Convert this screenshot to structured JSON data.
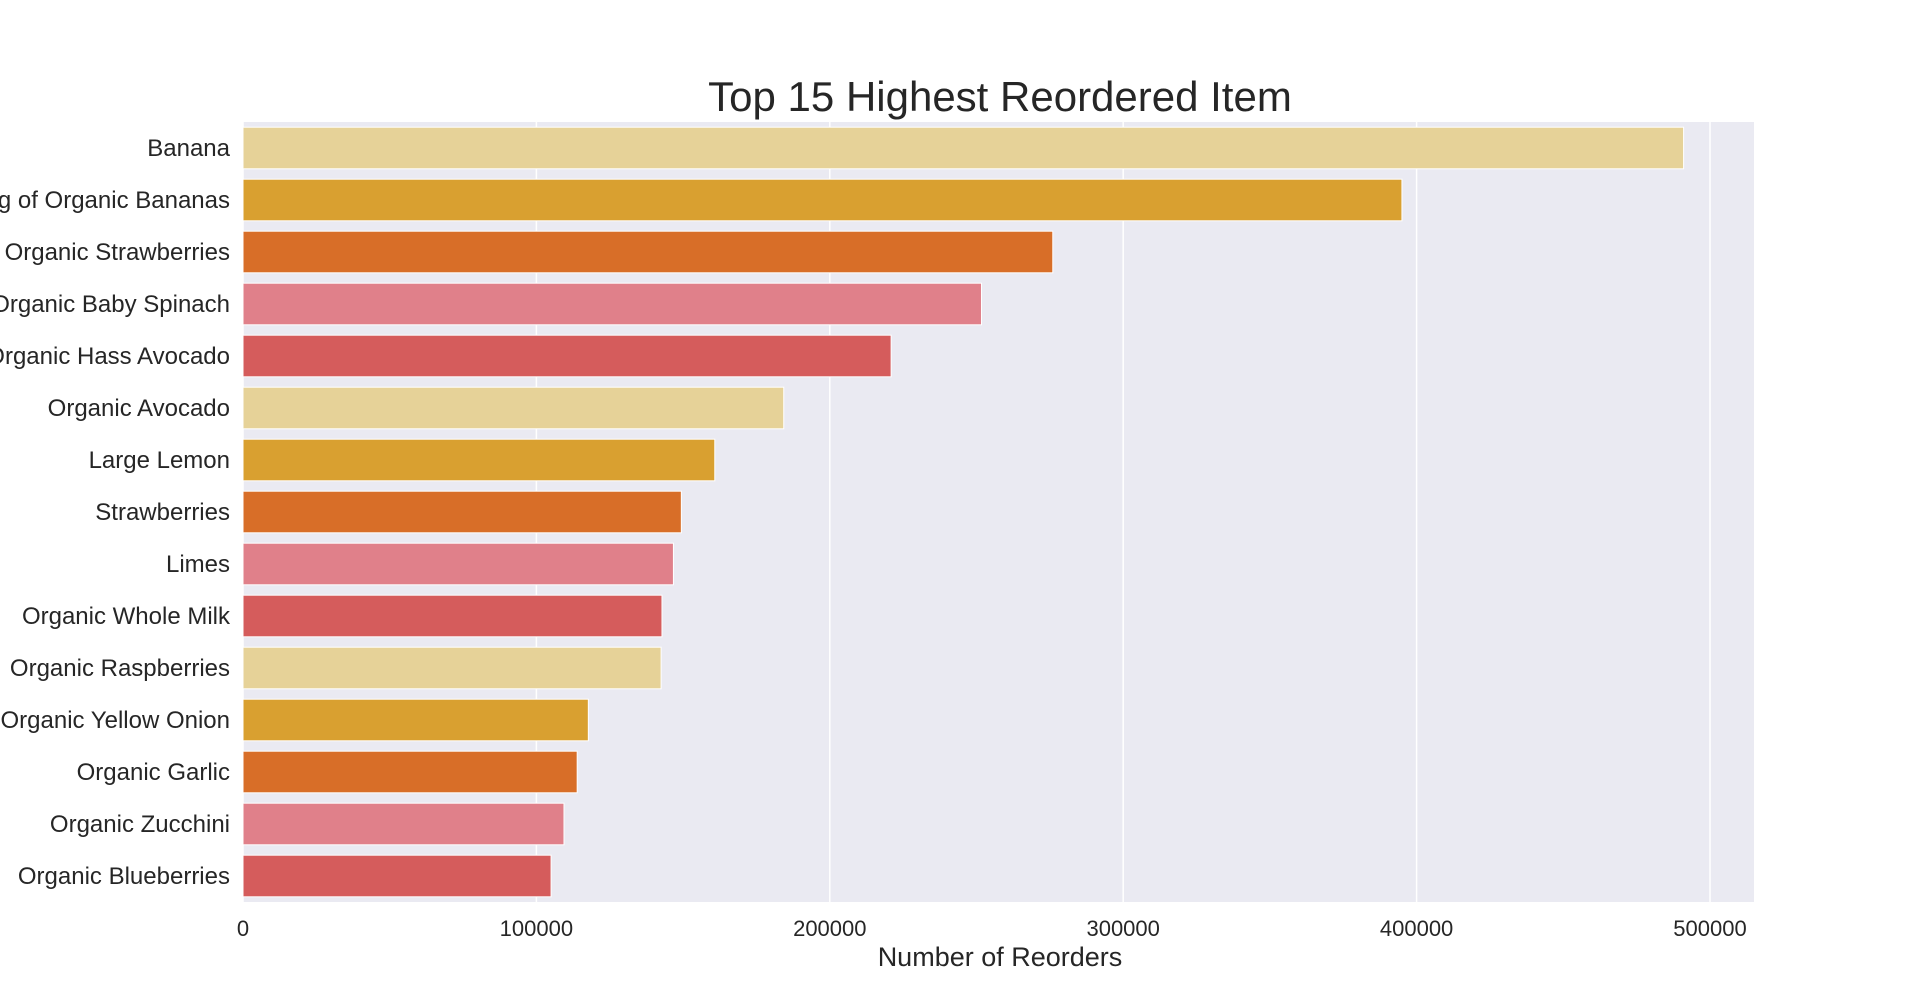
{
  "chart_data": {
    "type": "bar",
    "orientation": "horizontal",
    "title": "Top 15 Highest Reordered Item",
    "xlabel": "Number of Reorders",
    "ylabel": "",
    "categories": [
      "Banana",
      "Bag of Organic Bananas",
      "Organic Strawberries",
      "Organic Baby Spinach",
      "Organic Hass Avocado",
      "Organic Avocado",
      "Large Lemon",
      "Strawberries",
      "Limes",
      "Organic Whole Milk",
      "Organic Raspberries",
      "Organic Yellow Onion",
      "Organic Garlic",
      "Organic Zucchini",
      "Organic Blueberries"
    ],
    "values": [
      491000,
      395000,
      276000,
      251700,
      220900,
      184300,
      160800,
      149400,
      146700,
      142800,
      142500,
      117700,
      113900,
      109400,
      105000
    ],
    "xlim": [
      0,
      515000
    ],
    "xticks": [
      0,
      100000,
      200000,
      300000,
      400000,
      500000
    ],
    "xtick_labels": [
      "0",
      "100000",
      "200000",
      "300000",
      "400000",
      "500000"
    ],
    "grid": true,
    "colors": [
      "#e6d298",
      "#d9a030",
      "#d86e28",
      "#e0808a",
      "#d55c5c"
    ],
    "background": "#eaeaf2"
  }
}
